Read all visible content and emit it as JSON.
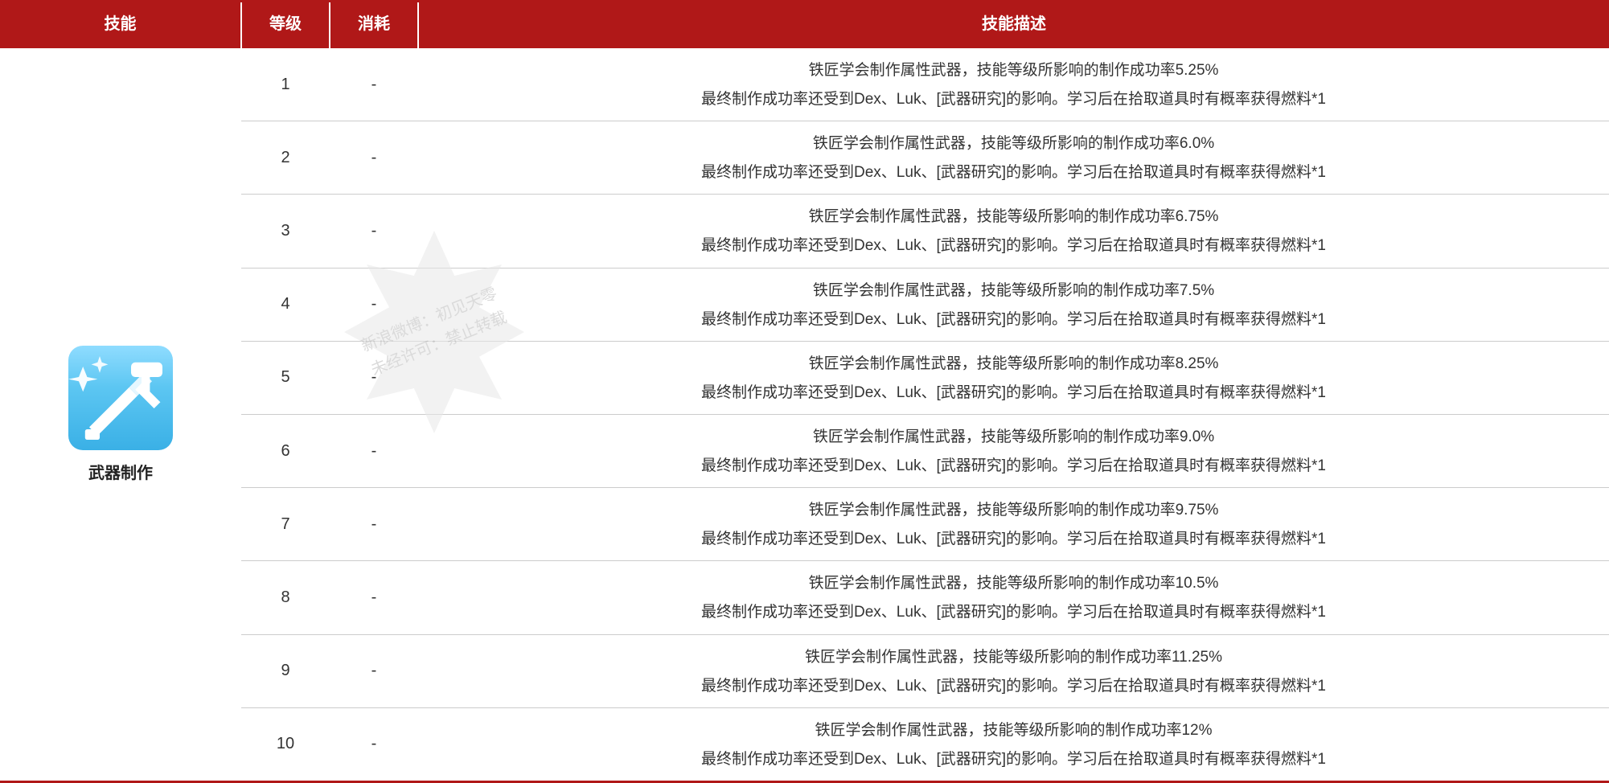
{
  "colors": {
    "header_bg": "#b01818",
    "header_text": "#ffffff",
    "row_border": "#cccccc",
    "body_text": "#333333",
    "icon_grad_top": "#8fdcff",
    "icon_grad_mid": "#5cc6f2",
    "icon_grad_bot": "#3ab0e6",
    "watermark_fill": "#e9e9e9",
    "watermark_text": "#bdbdbd"
  },
  "headers": {
    "skill": "技能",
    "level": "等级",
    "cost": "消耗",
    "desc": "技能描述"
  },
  "skill": {
    "name": "武器制作",
    "icon": "crossed-sword-hammer-icon"
  },
  "watermark": {
    "line1": "新浪微博：初见天零",
    "line2": "未经许可：禁止转载"
  },
  "desc_line2_common": "最终制作成功率还受到Dex、Luk、[武器研究]的影响。学习后在拾取道具时有概率获得燃料*1",
  "rows": [
    {
      "level": "1",
      "cost": "-",
      "line1": "铁匠学会制作属性武器，技能等级所影响的制作成功率5.25%"
    },
    {
      "level": "2",
      "cost": "-",
      "line1": "铁匠学会制作属性武器，技能等级所影响的制作成功率6.0%"
    },
    {
      "level": "3",
      "cost": "-",
      "line1": "铁匠学会制作属性武器，技能等级所影响的制作成功率6.75%"
    },
    {
      "level": "4",
      "cost": "-",
      "line1": "铁匠学会制作属性武器，技能等级所影响的制作成功率7.5%"
    },
    {
      "level": "5",
      "cost": "-",
      "line1": "铁匠学会制作属性武器，技能等级所影响的制作成功率8.25%"
    },
    {
      "level": "6",
      "cost": "-",
      "line1": "铁匠学会制作属性武器，技能等级所影响的制作成功率9.0%"
    },
    {
      "level": "7",
      "cost": "-",
      "line1": "铁匠学会制作属性武器，技能等级所影响的制作成功率9.75%"
    },
    {
      "level": "8",
      "cost": "-",
      "line1": "铁匠学会制作属性武器，技能等级所影响的制作成功率10.5%"
    },
    {
      "level": "9",
      "cost": "-",
      "line1": "铁匠学会制作属性武器，技能等级所影响的制作成功率11.25%"
    },
    {
      "level": "10",
      "cost": "-",
      "line1": "铁匠学会制作属性武器，技能等级所影响的制作成功率12%"
    }
  ]
}
